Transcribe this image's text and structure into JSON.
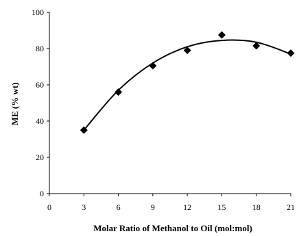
{
  "chart_data": {
    "type": "scatter",
    "title": "",
    "xlabel": "Molar Ratio of Methanol to Oil (mol:mol)",
    "ylabel": "ME (% wt)",
    "xlim": [
      0,
      21
    ],
    "ylim": [
      0,
      100
    ],
    "x_ticks": [
      0,
      3,
      6,
      9,
      12,
      15,
      18,
      21
    ],
    "y_ticks": [
      0,
      20,
      40,
      60,
      80,
      100
    ],
    "grid": false,
    "legend": "none",
    "series": [
      {
        "marker": "diamond",
        "color": "#000000",
        "points": [
          {
            "x": 3,
            "y": 35
          },
          {
            "x": 6,
            "y": 56
          },
          {
            "x": 9,
            "y": 70.5
          },
          {
            "x": 12,
            "y": 79
          },
          {
            "x": 15,
            "y": 87.5
          },
          {
            "x": 18,
            "y": 81.5
          },
          {
            "x": 21,
            "y": 77.5
          }
        ]
      }
    ],
    "trendline": {
      "type": "polynomial-2",
      "color": "#000000",
      "x_range": [
        3,
        21
      ],
      "points": [
        {
          "x": 3,
          "y": 35
        },
        {
          "x": 6,
          "y": 57
        },
        {
          "x": 9,
          "y": 72
        },
        {
          "x": 12,
          "y": 81
        },
        {
          "x": 15,
          "y": 84.5
        },
        {
          "x": 18,
          "y": 83.5
        },
        {
          "x": 21,
          "y": 77
        }
      ]
    }
  }
}
